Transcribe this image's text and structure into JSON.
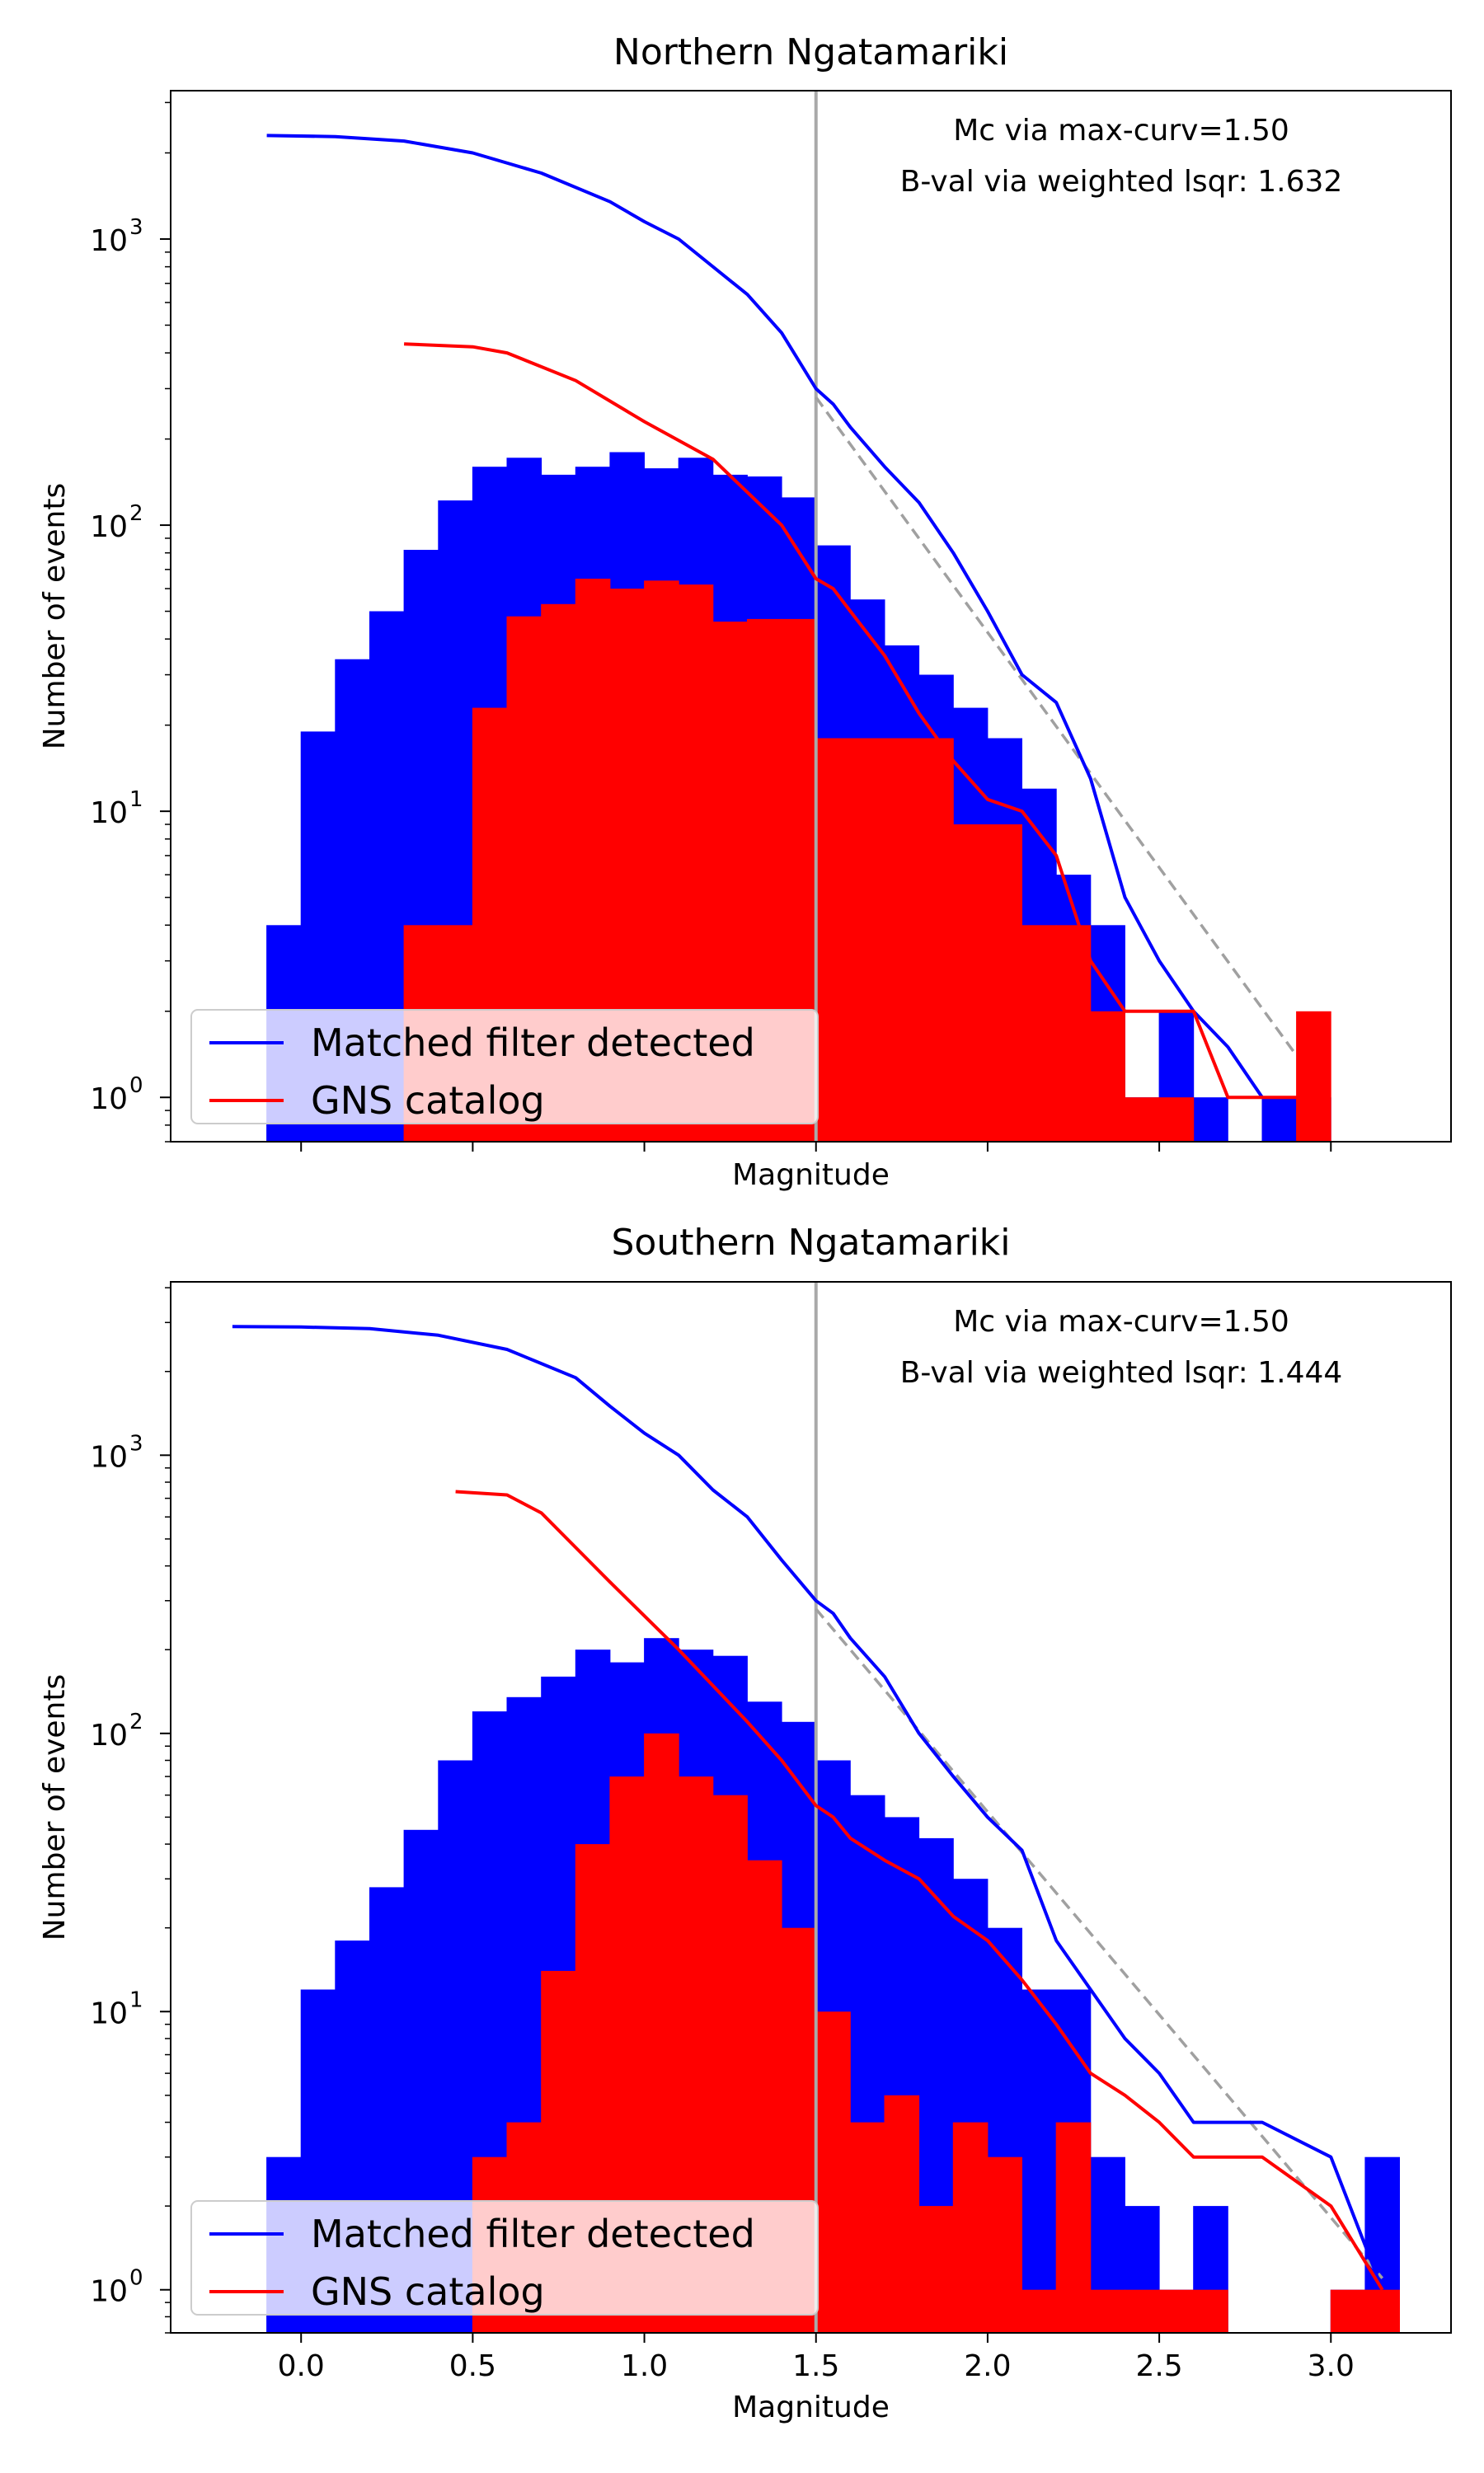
{
  "chart_data": [
    {
      "type": "bar",
      "title": "Northern Ngatamariki",
      "xlabel": "Magnitude",
      "ylabel": "Number of events",
      "yscale": "log",
      "xlim": [
        -0.38,
        3.35
      ],
      "ylim": [
        0.7,
        3300
      ],
      "x_ticks": [
        "0.0",
        "0.5",
        "1.0",
        "1.5",
        "2.0",
        "2.5",
        "3.0"
      ],
      "x_ticklabels_visible": false,
      "y_ticks": [
        1,
        10,
        100,
        1000
      ],
      "y_tick_labels": [
        {
          "base": "10",
          "exp": "0"
        },
        {
          "base": "10",
          "exp": "1"
        },
        {
          "base": "10",
          "exp": "2"
        },
        {
          "base": "10",
          "exp": "3"
        }
      ],
      "bin_width": 0.1,
      "annotations": [
        "Mc via max-curv=1.50",
        "B-val via weighted lsqr: 1.632"
      ],
      "mc": 1.5,
      "legend": {
        "placement": "lower-left",
        "entries": [
          {
            "label": "Matched filter detected",
            "color": "#0000ff"
          },
          {
            "label": "GNS catalog",
            "color": "#ff0000"
          }
        ]
      },
      "series": [
        {
          "name": "Matched filter detected",
          "kind": "histogram",
          "color": "#0000ff",
          "bins": [
            [
              -0.1,
              4
            ],
            [
              0.0,
              19
            ],
            [
              0.1,
              34
            ],
            [
              0.2,
              50
            ],
            [
              0.3,
              82
            ],
            [
              0.4,
              122
            ],
            [
              0.5,
              160
            ],
            [
              0.6,
              172
            ],
            [
              0.7,
              150
            ],
            [
              0.8,
              160
            ],
            [
              0.9,
              180
            ],
            [
              1.0,
              158
            ],
            [
              1.1,
              172
            ],
            [
              1.2,
              150
            ],
            [
              1.3,
              148
            ],
            [
              1.4,
              125
            ],
            [
              1.5,
              85
            ],
            [
              1.6,
              55
            ],
            [
              1.7,
              38
            ],
            [
              1.8,
              30
            ],
            [
              1.9,
              23
            ],
            [
              2.0,
              18
            ],
            [
              2.1,
              12
            ],
            [
              2.2,
              6
            ],
            [
              2.3,
              4
            ],
            [
              2.4,
              1
            ],
            [
              2.5,
              2
            ],
            [
              2.6,
              1
            ],
            [
              2.8,
              1
            ],
            [
              2.9,
              1
            ]
          ]
        },
        {
          "name": "GNS catalog",
          "kind": "histogram",
          "color": "#ff0000",
          "bins": [
            [
              0.3,
              4
            ],
            [
              0.4,
              4
            ],
            [
              0.5,
              23
            ],
            [
              0.6,
              48
            ],
            [
              0.7,
              53
            ],
            [
              0.8,
              65
            ],
            [
              0.9,
              60
            ],
            [
              1.0,
              64
            ],
            [
              1.1,
              62
            ],
            [
              1.2,
              46
            ],
            [
              1.3,
              47
            ],
            [
              1.4,
              47
            ],
            [
              1.5,
              18
            ],
            [
              1.6,
              18
            ],
            [
              1.7,
              18
            ],
            [
              1.8,
              18
            ],
            [
              1.9,
              9
            ],
            [
              2.0,
              9
            ],
            [
              2.1,
              4
            ],
            [
              2.2,
              4
            ],
            [
              2.3,
              2
            ],
            [
              2.4,
              1
            ],
            [
              2.5,
              1
            ],
            [
              2.9,
              2
            ]
          ]
        },
        {
          "name": "Matched filter detected",
          "kind": "cumulative-line",
          "color": "#0000ff",
          "points": [
            [
              -0.1,
              2300
            ],
            [
              0.1,
              2280
            ],
            [
              0.3,
              2200
            ],
            [
              0.5,
              2000
            ],
            [
              0.7,
              1700
            ],
            [
              0.9,
              1350
            ],
            [
              1.0,
              1150
            ],
            [
              1.1,
              1000
            ],
            [
              1.3,
              640
            ],
            [
              1.4,
              470
            ],
            [
              1.5,
              300
            ],
            [
              1.55,
              265
            ],
            [
              1.6,
              220
            ],
            [
              1.7,
              160
            ],
            [
              1.8,
              120
            ],
            [
              1.9,
              80
            ],
            [
              2.0,
              50
            ],
            [
              2.1,
              30
            ],
            [
              2.2,
              24
            ],
            [
              2.3,
              13
            ],
            [
              2.4,
              5
            ],
            [
              2.5,
              3
            ],
            [
              2.6,
              2
            ],
            [
              2.7,
              1.5
            ],
            [
              2.8,
              1
            ]
          ]
        },
        {
          "name": "GNS catalog",
          "kind": "cumulative-line",
          "color": "#ff0000",
          "points": [
            [
              0.3,
              430
            ],
            [
              0.5,
              420
            ],
            [
              0.6,
              400
            ],
            [
              0.8,
              320
            ],
            [
              1.0,
              230
            ],
            [
              1.2,
              170
            ],
            [
              1.4,
              100
            ],
            [
              1.5,
              65
            ],
            [
              1.55,
              60
            ],
            [
              1.6,
              50
            ],
            [
              1.7,
              35
            ],
            [
              1.8,
              22
            ],
            [
              1.9,
              15
            ],
            [
              2.0,
              11
            ],
            [
              2.1,
              10
            ],
            [
              2.2,
              7
            ],
            [
              2.3,
              3
            ],
            [
              2.4,
              2
            ],
            [
              2.5,
              2
            ],
            [
              2.6,
              2
            ],
            [
              2.7,
              1
            ],
            [
              2.9,
              1
            ]
          ]
        },
        {
          "name": "",
          "kind": "fit-line",
          "color": "#a0a0a0",
          "points": [
            [
              1.5,
              280
            ],
            [
              2.9,
              1.4
            ]
          ]
        }
      ]
    },
    {
      "type": "bar",
      "title": "Southern Ngatamariki",
      "xlabel": "Magnitude",
      "ylabel": "Number of events",
      "yscale": "log",
      "xlim": [
        -0.38,
        3.35
      ],
      "ylim": [
        0.7,
        4200
      ],
      "x_ticks": [
        "0.0",
        "0.5",
        "1.0",
        "1.5",
        "2.0",
        "2.5",
        "3.0"
      ],
      "x_ticklabels_visible": true,
      "y_ticks": [
        1,
        10,
        100,
        1000
      ],
      "y_tick_labels": [
        {
          "base": "10",
          "exp": "0"
        },
        {
          "base": "10",
          "exp": "1"
        },
        {
          "base": "10",
          "exp": "2"
        },
        {
          "base": "10",
          "exp": "3"
        }
      ],
      "bin_width": 0.1,
      "annotations": [
        "Mc via max-curv=1.50",
        "B-val via weighted lsqr: 1.444"
      ],
      "mc": 1.5,
      "legend": {
        "placement": "lower-left",
        "entries": [
          {
            "label": "Matched filter detected",
            "color": "#0000ff"
          },
          {
            "label": "GNS catalog",
            "color": "#ff0000"
          }
        ]
      },
      "series": [
        {
          "name": "Matched filter detected",
          "kind": "histogram",
          "color": "#0000ff",
          "bins": [
            [
              -0.1,
              3
            ],
            [
              0.0,
              12
            ],
            [
              0.1,
              18
            ],
            [
              0.2,
              28
            ],
            [
              0.3,
              45
            ],
            [
              0.4,
              80
            ],
            [
              0.5,
              120
            ],
            [
              0.6,
              135
            ],
            [
              0.7,
              160
            ],
            [
              0.8,
              200
            ],
            [
              0.9,
              180
            ],
            [
              1.0,
              220
            ],
            [
              1.1,
              200
            ],
            [
              1.2,
              190
            ],
            [
              1.3,
              130
            ],
            [
              1.4,
              110
            ],
            [
              1.5,
              80
            ],
            [
              1.6,
              60
            ],
            [
              1.7,
              50
            ],
            [
              1.8,
              42
            ],
            [
              1.9,
              30
            ],
            [
              2.0,
              20
            ],
            [
              2.1,
              12
            ],
            [
              2.2,
              12
            ],
            [
              2.3,
              3
            ],
            [
              2.4,
              2
            ],
            [
              2.5,
              1
            ],
            [
              2.6,
              2
            ],
            [
              3.0,
              1
            ],
            [
              3.1,
              3
            ]
          ]
        },
        {
          "name": "GNS catalog",
          "kind": "histogram",
          "color": "#ff0000",
          "bins": [
            [
              0.5,
              3
            ],
            [
              0.6,
              4
            ],
            [
              0.7,
              14
            ],
            [
              0.8,
              40
            ],
            [
              0.9,
              70
            ],
            [
              1.0,
              100
            ],
            [
              1.1,
              70
            ],
            [
              1.2,
              60
            ],
            [
              1.3,
              35
            ],
            [
              1.4,
              20
            ],
            [
              1.5,
              10
            ],
            [
              1.6,
              4
            ],
            [
              1.7,
              5
            ],
            [
              1.8,
              2
            ],
            [
              1.9,
              4
            ],
            [
              2.0,
              3
            ],
            [
              2.1,
              1
            ],
            [
              2.2,
              4
            ],
            [
              2.3,
              1
            ],
            [
              2.4,
              1
            ],
            [
              2.5,
              1
            ],
            [
              2.6,
              1
            ],
            [
              3.0,
              1
            ],
            [
              3.1,
              1
            ]
          ]
        },
        {
          "name": "Matched filter detected",
          "kind": "cumulative-line",
          "color": "#0000ff",
          "points": [
            [
              -0.2,
              2900
            ],
            [
              0.0,
              2890
            ],
            [
              0.2,
              2850
            ],
            [
              0.4,
              2700
            ],
            [
              0.6,
              2400
            ],
            [
              0.8,
              1900
            ],
            [
              0.9,
              1500
            ],
            [
              1.0,
              1200
            ],
            [
              1.1,
              1000
            ],
            [
              1.2,
              750
            ],
            [
              1.3,
              600
            ],
            [
              1.4,
              420
            ],
            [
              1.5,
              300
            ],
            [
              1.55,
              270
            ],
            [
              1.6,
              220
            ],
            [
              1.7,
              160
            ],
            [
              1.8,
              100
            ],
            [
              1.9,
              70
            ],
            [
              2.0,
              50
            ],
            [
              2.1,
              38
            ],
            [
              2.2,
              18
            ],
            [
              2.3,
              12
            ],
            [
              2.4,
              8
            ],
            [
              2.5,
              6
            ],
            [
              2.6,
              4
            ],
            [
              2.8,
              4
            ],
            [
              3.0,
              3
            ],
            [
              3.15,
              1
            ]
          ]
        },
        {
          "name": "GNS catalog",
          "kind": "cumulative-line",
          "color": "#ff0000",
          "points": [
            [
              0.45,
              740
            ],
            [
              0.6,
              720
            ],
            [
              0.7,
              620
            ],
            [
              0.9,
              350
            ],
            [
              1.1,
              200
            ],
            [
              1.3,
              110
            ],
            [
              1.4,
              80
            ],
            [
              1.5,
              55
            ],
            [
              1.55,
              50
            ],
            [
              1.6,
              42
            ],
            [
              1.7,
              35
            ],
            [
              1.8,
              30
            ],
            [
              1.9,
              22
            ],
            [
              2.0,
              18
            ],
            [
              2.1,
              13
            ],
            [
              2.2,
              9
            ],
            [
              2.3,
              6
            ],
            [
              2.4,
              5
            ],
            [
              2.5,
              4
            ],
            [
              2.6,
              3
            ],
            [
              2.8,
              3
            ],
            [
              3.0,
              2
            ],
            [
              3.15,
              1
            ]
          ]
        },
        {
          "name": "",
          "kind": "fit-line",
          "color": "#a0a0a0",
          "points": [
            [
              1.5,
              280
            ],
            [
              3.15,
              1.1
            ]
          ]
        }
      ]
    }
  ]
}
